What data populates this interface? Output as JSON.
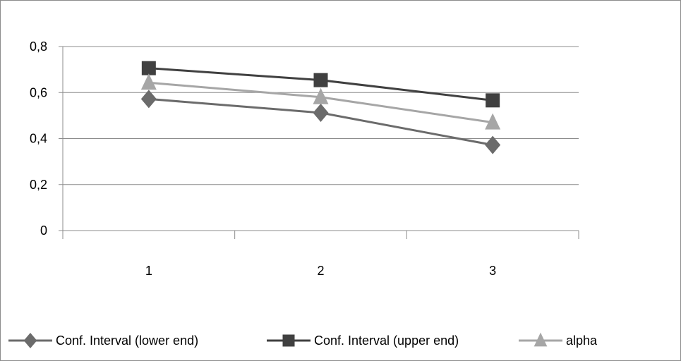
{
  "chart_data": {
    "type": "line",
    "title": "",
    "xlabel": "",
    "ylabel": "",
    "categories": [
      "1",
      "2",
      "3"
    ],
    "ylim": [
      0,
      0.8
    ],
    "yticks": [
      0,
      0.2,
      0.4,
      0.6,
      0.8
    ],
    "ytick_labels": [
      "0",
      "0,2",
      "0,4",
      "0,6",
      "0,8"
    ],
    "grid": "horizontal",
    "legend_position": "bottom",
    "series": [
      {
        "name": "Conf. Interval (lower end)",
        "values": [
          0.572,
          0.512,
          0.372
        ],
        "marker": "diamond",
        "color": "#6b6b6b"
      },
      {
        "name": "Conf. Interval (upper end)",
        "values": [
          0.706,
          0.654,
          0.566
        ],
        "marker": "square",
        "color": "#404040"
      },
      {
        "name": "alpha",
        "values": [
          0.643,
          0.58,
          0.47
        ],
        "marker": "triangle",
        "color": "#a6a6a6"
      }
    ]
  }
}
